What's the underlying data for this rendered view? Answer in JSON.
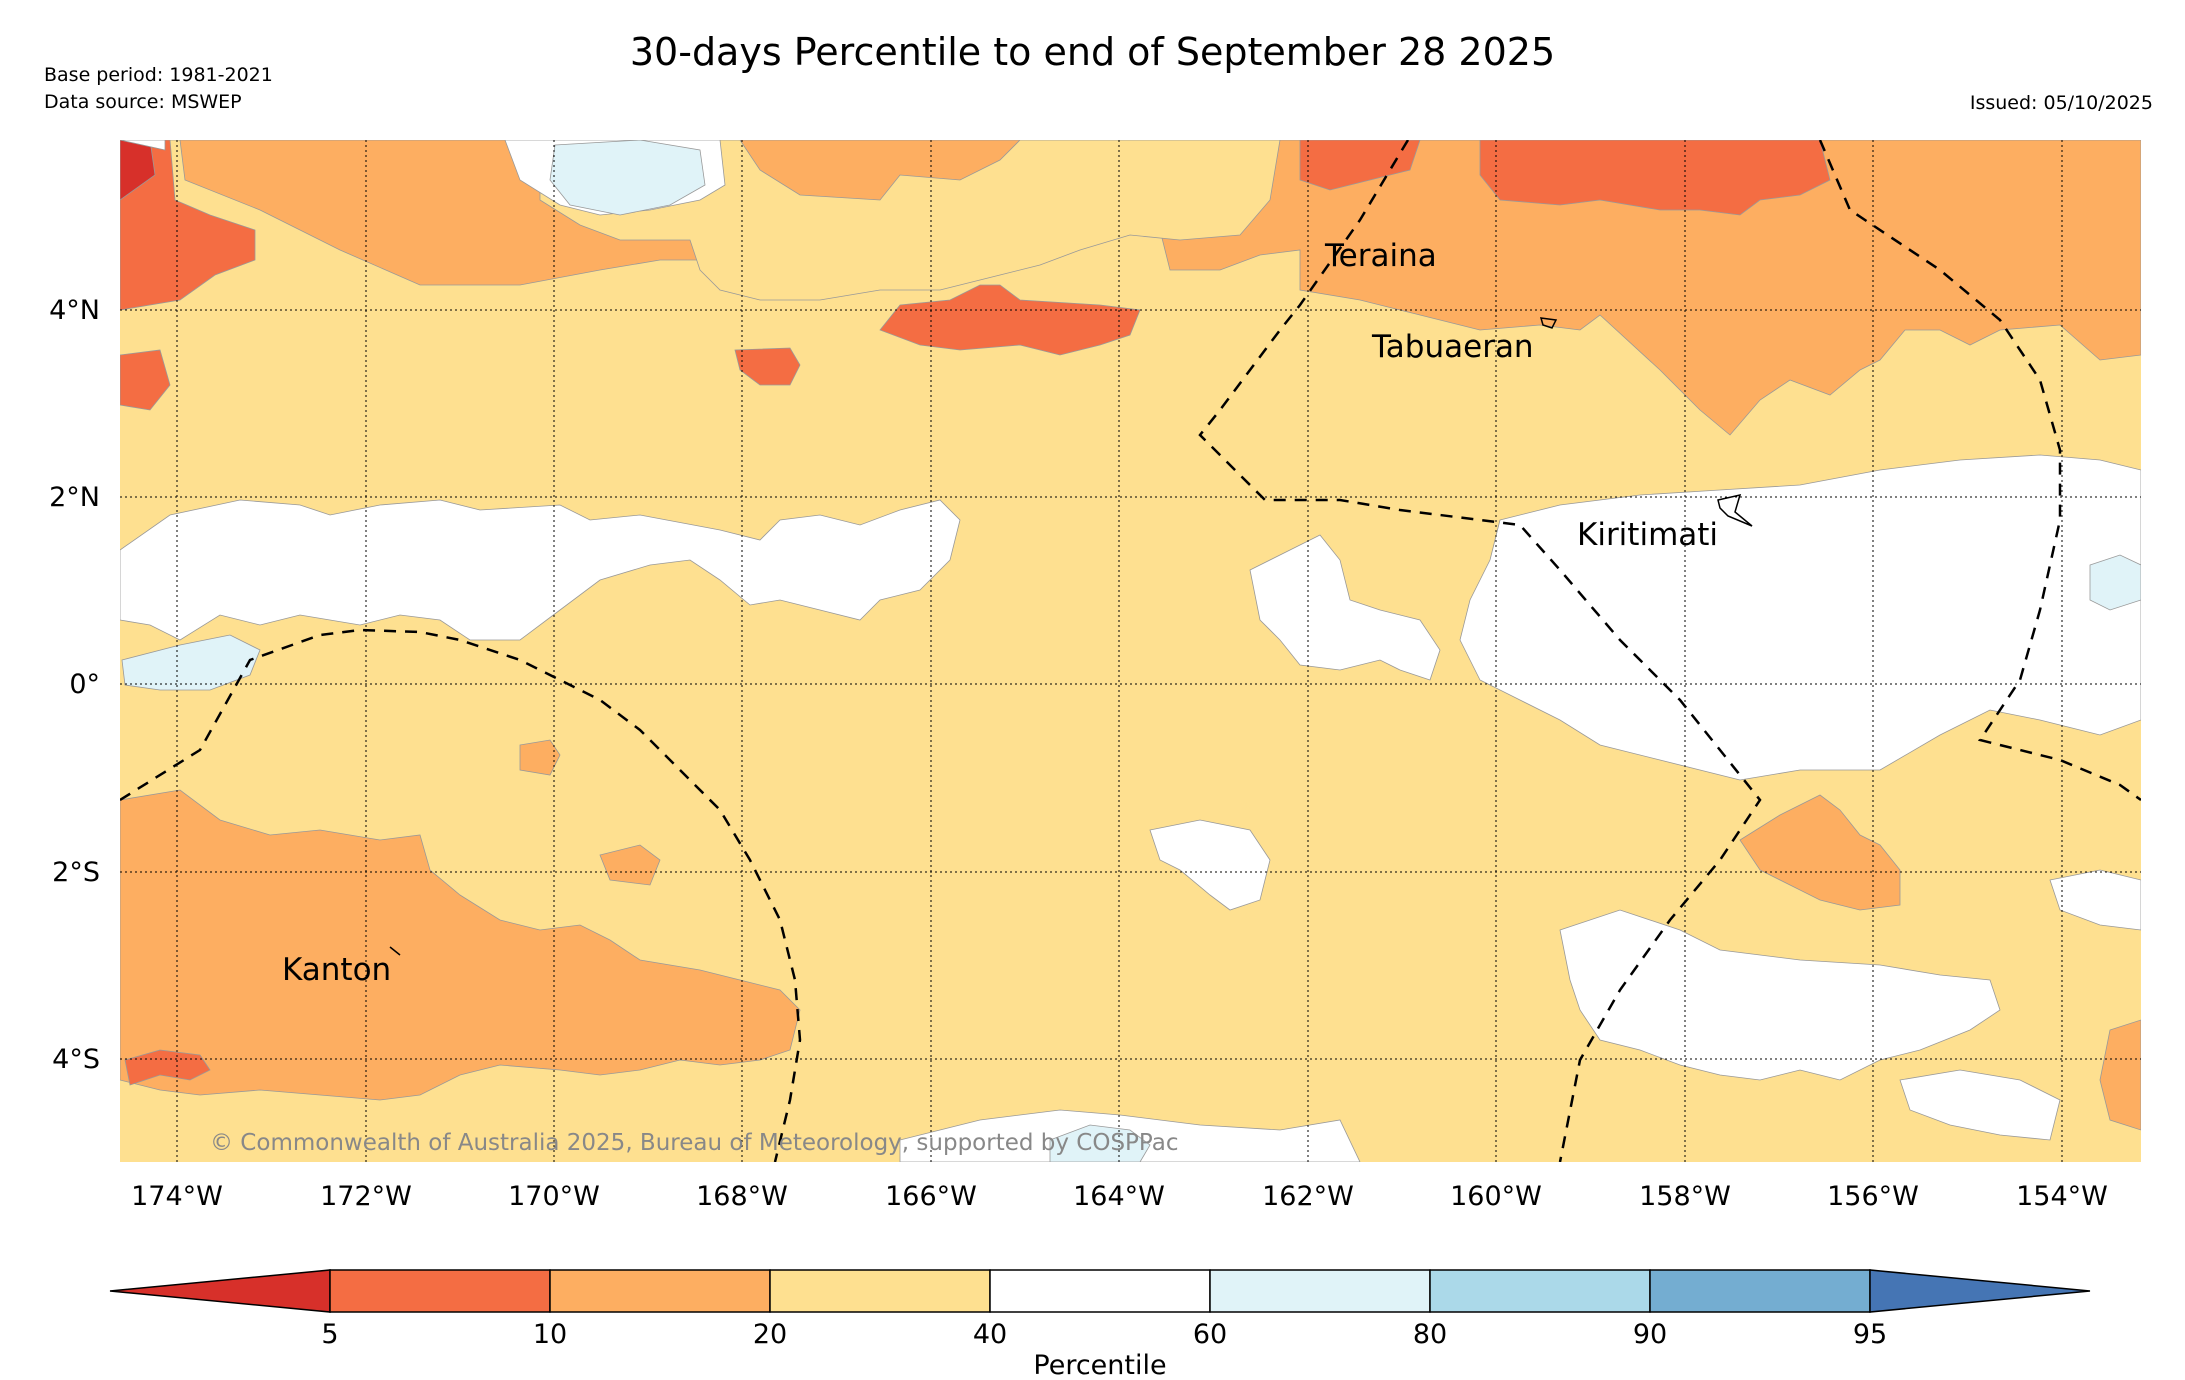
{
  "title": "30-days Percentile to end of September 28 2025",
  "meta": {
    "base_period": "Base period: 1981-2021",
    "data_source": "Data source: MSWEP",
    "issued": "Issued: 05/10/2025"
  },
  "map": {
    "lon_ticks": [
      "174°W",
      "172°W",
      "170°W",
      "168°W",
      "166°W",
      "164°W",
      "162°W",
      "160°W",
      "158°W",
      "156°W",
      "154°W"
    ],
    "lat_ticks": [
      "4°N",
      "2°N",
      "0°",
      "2°S",
      "4°S"
    ],
    "places": [
      {
        "name": "Teraina"
      },
      {
        "name": "Tabuaeran"
      },
      {
        "name": "Kiritimati"
      },
      {
        "name": "Kanton"
      }
    ],
    "copyright": "© Commonwealth of Australia 2025, Bureau of Meteorology, supported by COSPPac"
  },
  "colorbar": {
    "label": "Percentile",
    "ticks": [
      "5",
      "10",
      "20",
      "40",
      "60",
      "80",
      "90",
      "95"
    ],
    "colors": [
      "#d7302a",
      "#f46d43",
      "#fdae61",
      "#fee090",
      "#ffffff",
      "#e0f3f8",
      "#abd9e9",
      "#74add1",
      "#4575b4"
    ]
  },
  "legend_categories": [
    {
      "range": "<5",
      "color": "#d7302a"
    },
    {
      "range": "5-10",
      "color": "#f46d43"
    },
    {
      "range": "10-20",
      "color": "#fdae61"
    },
    {
      "range": "20-40",
      "color": "#fee090"
    },
    {
      "range": "40-60",
      "color": "#ffffff"
    },
    {
      "range": "60-80",
      "color": "#e0f3f8"
    },
    {
      "range": "80-90",
      "color": "#abd9e9"
    },
    {
      "range": "90-95",
      "color": "#74add1"
    },
    {
      "range": ">95",
      "color": "#4575b4"
    }
  ]
}
